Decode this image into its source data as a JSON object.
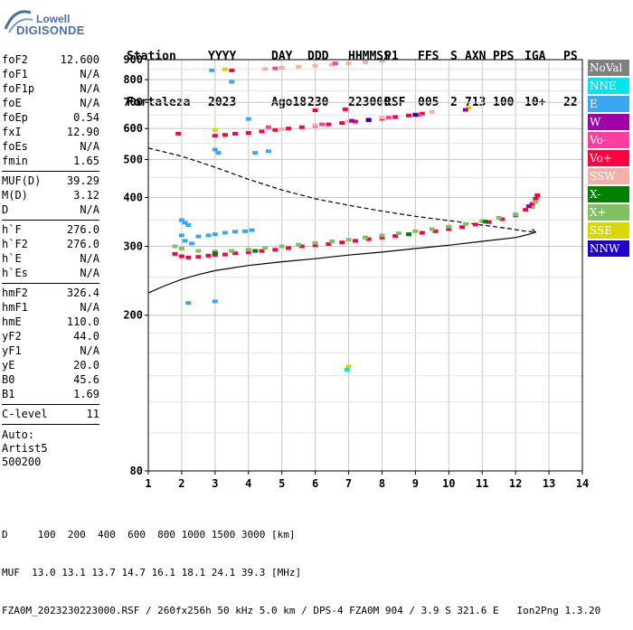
{
  "logo": {
    "line1": "Lowell",
    "line2": "DIGISONDE"
  },
  "header": {
    "row1": [
      "Station",
      "YYYY",
      "DAY",
      "DDD",
      "HHMMSS",
      "P1",
      "FFS",
      "S",
      "AXN",
      "PPS",
      "IGA",
      "PS"
    ],
    "row2": [
      "Fortaleza",
      "2023",
      "Ago18",
      "230",
      "223000",
      "RSF",
      "005",
      "2",
      "713",
      "100",
      "10+",
      "22"
    ]
  },
  "params": {
    "group1": [
      {
        "label": "foF2",
        "value": "12.600"
      },
      {
        "label": "foF1",
        "value": "N/A"
      },
      {
        "label": "foF1p",
        "value": "N/A"
      },
      {
        "label": "foE",
        "value": "N/A"
      },
      {
        "label": "foEp",
        "value": "0.54"
      },
      {
        "label": "fxI",
        "value": "12.90"
      },
      {
        "label": "foEs",
        "value": "N/A"
      },
      {
        "label": "fmin",
        "value": "1.65"
      }
    ],
    "group2": [
      {
        "label": "MUF(D)",
        "value": "39.29"
      },
      {
        "label": "M(D)",
        "value": "3.12"
      },
      {
        "label": "D",
        "value": "N/A"
      }
    ],
    "group3": [
      {
        "label": "h`F",
        "value": "276.0"
      },
      {
        "label": "h`F2",
        "value": "276.0"
      },
      {
        "label": "h`E",
        "value": "N/A"
      },
      {
        "label": "h`Es",
        "value": "N/A"
      }
    ],
    "group4": [
      {
        "label": "hmF2",
        "value": "326.4"
      },
      {
        "label": "hmF1",
        "value": "N/A"
      },
      {
        "label": "hmE",
        "value": "110.0"
      },
      {
        "label": "yF2",
        "value": "44.0"
      },
      {
        "label": "yF1",
        "value": "N/A"
      },
      {
        "label": "yE",
        "value": "20.0"
      },
      {
        "label": "B0",
        "value": "45.6"
      },
      {
        "label": "B1",
        "value": "1.69"
      }
    ],
    "group5": [
      {
        "label": "C-level",
        "value": "11"
      }
    ],
    "auto": [
      "Auto:",
      "Artist5",
      "500200"
    ]
  },
  "legend": [
    {
      "label": "NoVal",
      "color": "#808080"
    },
    {
      "label": "NNE",
      "color": "#00e5ee"
    },
    {
      "label": "E",
      "color": "#3aa8f0"
    },
    {
      "label": "W",
      "color": "#a000a8"
    },
    {
      "label": "Vo-",
      "color": "#ff3ca0"
    },
    {
      "label": "Vo+",
      "color": "#ff0040"
    },
    {
      "label": "SSW",
      "color": "#f4b0a8"
    },
    {
      "label": "X-",
      "color": "#008000"
    },
    {
      "label": "X+",
      "color": "#80c060"
    },
    {
      "label": "SSE",
      "color": "#d8d800"
    },
    {
      "label": "NNW",
      "color": "#2000d0"
    }
  ],
  "chart_data": {
    "type": "scatter",
    "xlim": [
      1,
      14
    ],
    "ylim": [
      80,
      900
    ],
    "xticks": [
      "1",
      "2",
      "3",
      "4",
      "5",
      "6",
      "7",
      "8",
      "9",
      "10",
      "11",
      "12",
      "13",
      "14"
    ],
    "yticks": [
      {
        "value": 80,
        "label": "80"
      },
      {
        "value": 200,
        "label": "200"
      },
      {
        "value": 300,
        "label": "300"
      },
      {
        "value": 400,
        "label": "400"
      },
      {
        "value": 500,
        "label": "500"
      },
      {
        "value": 600,
        "label": "600"
      },
      {
        "value": 700,
        "label": "700"
      },
      {
        "value": 800,
        "label": "800"
      },
      {
        "value": 900,
        "label": "900"
      }
    ],
    "grid": true,
    "y_scale": "log",
    "series": [
      {
        "name": "Vo+",
        "color": "#ff0040",
        "points": [
          [
            1.8,
            287
          ],
          [
            2.0,
            283
          ],
          [
            2.2,
            281
          ],
          [
            2.5,
            282
          ],
          [
            2.8,
            284
          ],
          [
            3.0,
            285
          ],
          [
            3.3,
            286
          ],
          [
            3.6,
            288
          ],
          [
            4.0,
            290
          ],
          [
            4.4,
            292
          ],
          [
            4.8,
            294
          ],
          [
            5.2,
            297
          ],
          [
            5.6,
            300
          ],
          [
            6.0,
            302
          ],
          [
            6.4,
            304
          ],
          [
            6.8,
            307
          ],
          [
            7.2,
            310
          ],
          [
            7.6,
            313
          ],
          [
            8.0,
            316
          ],
          [
            8.4,
            319
          ],
          [
            8.8,
            322
          ],
          [
            9.2,
            325
          ],
          [
            9.6,
            328
          ],
          [
            10.0,
            332
          ],
          [
            10.4,
            336
          ],
          [
            10.8,
            341
          ],
          [
            11.2,
            346
          ],
          [
            11.6,
            352
          ],
          [
            12.0,
            360
          ],
          [
            12.3,
            372
          ],
          [
            12.5,
            385
          ],
          [
            12.6,
            397
          ],
          [
            12.65,
            405
          ],
          [
            3.0,
            575
          ],
          [
            3.3,
            578
          ],
          [
            3.6,
            582
          ],
          [
            4.0,
            585
          ],
          [
            4.4,
            590
          ],
          [
            4.8,
            595
          ],
          [
            5.2,
            600
          ],
          [
            5.6,
            605
          ],
          [
            6.0,
            610
          ],
          [
            6.4,
            615
          ],
          [
            6.8,
            620
          ],
          [
            7.2,
            625
          ],
          [
            7.6,
            630
          ],
          [
            8.0,
            636
          ],
          [
            8.4,
            642
          ],
          [
            8.8,
            648
          ],
          [
            9.2,
            655
          ],
          [
            1.9,
            582
          ],
          [
            3.5,
            845
          ],
          [
            6.0,
            668
          ],
          [
            6.9,
            672
          ]
        ]
      },
      {
        "name": "X+",
        "color": "#80c060",
        "points": [
          [
            1.8,
            300
          ],
          [
            2.0,
            296
          ],
          [
            2.5,
            292
          ],
          [
            3.0,
            291
          ],
          [
            3.5,
            292
          ],
          [
            4.0,
            294
          ],
          [
            4.5,
            297
          ],
          [
            5.0,
            300
          ],
          [
            5.5,
            303
          ],
          [
            6.0,
            306
          ],
          [
            6.5,
            309
          ],
          [
            7.0,
            312
          ],
          [
            7.5,
            316
          ],
          [
            8.0,
            320
          ],
          [
            8.5,
            324
          ],
          [
            9.0,
            328
          ],
          [
            9.5,
            332
          ],
          [
            10.0,
            337
          ],
          [
            10.5,
            342
          ],
          [
            11.0,
            348
          ],
          [
            11.5,
            355
          ],
          [
            12.0,
            362
          ],
          [
            12.5,
            378
          ],
          [
            12.6,
            390
          ]
        ]
      },
      {
        "name": "SSW",
        "color": "#f4b0a8",
        "points": [
          [
            4.5,
            852
          ],
          [
            5.0,
            858
          ],
          [
            5.5,
            863
          ],
          [
            6.0,
            868
          ],
          [
            6.5,
            874
          ],
          [
            7.0,
            880
          ],
          [
            7.5,
            886
          ],
          [
            8.0,
            892
          ],
          [
            5.0,
            598
          ],
          [
            6.0,
            612
          ],
          [
            7.0,
            626
          ],
          [
            8.0,
            640
          ],
          [
            9.0,
            654
          ],
          [
            9.5,
            662
          ]
        ]
      },
      {
        "name": "E",
        "color": "#3aa8f0",
        "points": [
          [
            2.0,
            350
          ],
          [
            2.1,
            345
          ],
          [
            2.2,
            340
          ],
          [
            2.0,
            320
          ],
          [
            2.1,
            310
          ],
          [
            2.3,
            305
          ],
          [
            2.5,
            318
          ],
          [
            2.8,
            320
          ],
          [
            3.0,
            322
          ],
          [
            3.3,
            325
          ],
          [
            3.6,
            327
          ],
          [
            3.9,
            328
          ],
          [
            4.1,
            330
          ],
          [
            2.2,
            215
          ],
          [
            3.0,
            217
          ],
          [
            3.0,
            530
          ],
          [
            3.1,
            520
          ],
          [
            4.2,
            520
          ],
          [
            4.6,
            525
          ],
          [
            3.5,
            790
          ],
          [
            2.9,
            845
          ],
          [
            4.0,
            635
          ]
        ]
      },
      {
        "name": "Vo-",
        "color": "#ff3ca0",
        "points": [
          [
            4.6,
            605
          ],
          [
            6.2,
            615
          ],
          [
            8.2,
            640
          ],
          [
            9.1,
            650
          ],
          [
            4.8,
            855
          ],
          [
            6.6,
            880
          ]
        ]
      },
      {
        "name": "X-",
        "color": "#008000",
        "points": [
          [
            3.0,
            288
          ],
          [
            4.2,
            292
          ],
          [
            8.8,
            322
          ],
          [
            11.1,
            347
          ]
        ]
      },
      {
        "name": "SSE",
        "color": "#d8d800",
        "points": [
          [
            3.3,
            850
          ],
          [
            7.0,
            148
          ],
          [
            10.6,
            678
          ],
          [
            3.0,
            595
          ]
        ]
      },
      {
        "name": "NNW",
        "color": "#2000d0",
        "points": [
          [
            7.6,
            632
          ],
          [
            9.0,
            650
          ]
        ]
      },
      {
        "name": "W",
        "color": "#a000a8",
        "points": [
          [
            10.5,
            670
          ],
          [
            12.4,
            380
          ],
          [
            7.1,
            628
          ]
        ]
      },
      {
        "name": "NNE",
        "color": "#00e5ee",
        "points": [
          [
            6.95,
            145
          ]
        ]
      }
    ],
    "profile_solid": [
      [
        1.0,
        228
      ],
      [
        1.5,
        238
      ],
      [
        2.0,
        247
      ],
      [
        2.5,
        254
      ],
      [
        3.0,
        260
      ],
      [
        4.0,
        268
      ],
      [
        5.0,
        274
      ],
      [
        6.0,
        279
      ],
      [
        7.0,
        285
      ],
      [
        8.0,
        290
      ],
      [
        9.0,
        296
      ],
      [
        10.0,
        302
      ],
      [
        11.0,
        309
      ],
      [
        12.0,
        316
      ],
      [
        12.4,
        322
      ],
      [
        12.6,
        326
      ],
      [
        12.5,
        332
      ]
    ],
    "profile_dashed": [
      [
        1.0,
        535
      ],
      [
        2.0,
        510
      ],
      [
        3.0,
        478
      ],
      [
        4.0,
        445
      ],
      [
        5.0,
        418
      ],
      [
        6.0,
        397
      ],
      [
        7.0,
        382
      ],
      [
        8.0,
        369
      ],
      [
        9.0,
        358
      ],
      [
        10.0,
        349
      ],
      [
        11.0,
        340
      ],
      [
        11.8,
        333
      ],
      [
        12.3,
        328
      ],
      [
        12.6,
        326
      ]
    ]
  },
  "footer": {
    "row1": "D     100  200  400  600  800 1000 1500 3000 [km]",
    "row2": "MUF  13.0 13.1 13.7 14.7 16.1 18.1 24.1 39.3 [MHz]",
    "row3": "FZA0M_2023230223000.RSF / 260fx256h 50 kHz 5.0 km / DPS-4 FZA0M 904 / 3.9 S 321.6 E   Ion2Png 1.3.20"
  }
}
